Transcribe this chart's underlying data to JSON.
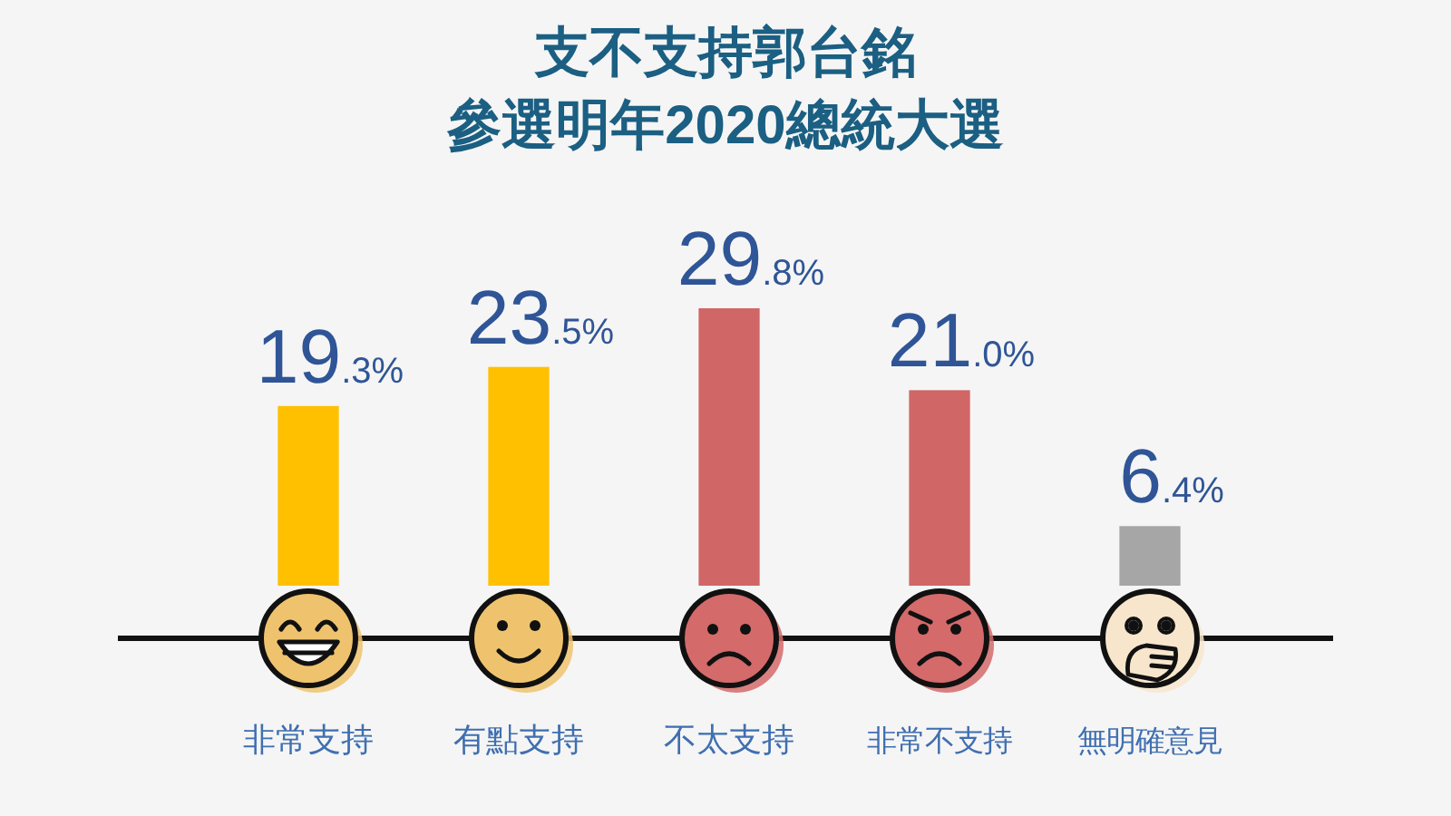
{
  "chart_data": {
    "type": "bar",
    "title": "支不支持郭台銘",
    "subtitle": "參選明年2020總統大選",
    "categories": [
      "非常支持",
      "有點支持",
      "不太支持",
      "非常不支持",
      "無明確意見"
    ],
    "values": [
      19.3,
      23.5,
      29.8,
      21.0,
      6.4
    ],
    "colors": [
      "#ffc000",
      "#ffc000",
      "#d06666",
      "#d06666",
      "#a6a6a6"
    ],
    "value_labels": [
      "19.3%",
      "23.5%",
      "29.8%",
      "21.0%",
      "6.4%"
    ]
  }
}
